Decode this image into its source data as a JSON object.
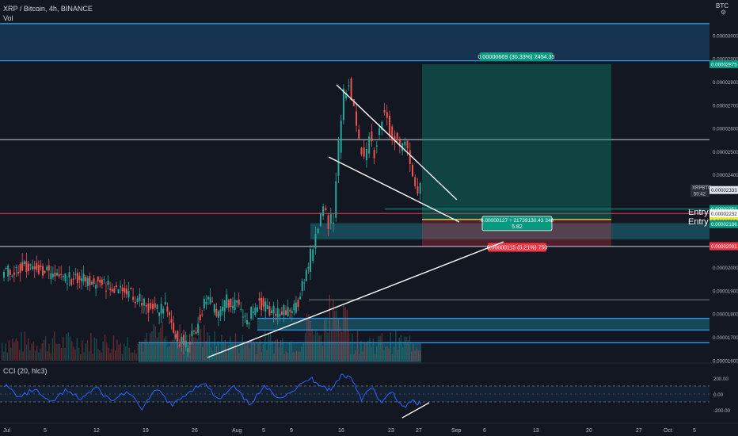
{
  "header": {
    "symbol_line": "XRP / Bitcoin, 4h, BINANCE",
    "volume_label": "Vol",
    "indicator_label": "CCI (20, hlc3)",
    "currency": "BTC",
    "settings_icon": "gear-icon"
  },
  "chart_data": {
    "type": "candlestick",
    "symbol": "XRP / Bitcoin",
    "timeframe": "4h",
    "exchange": "BINANCE",
    "x_tick_labels": [
      "Jul",
      "5",
      "12",
      "19",
      "26",
      "Aug",
      "5",
      "9",
      "16",
      "23",
      "27",
      "Sep",
      "6",
      "13",
      "20",
      "27",
      "Oct",
      "5"
    ],
    "y_tick_labels": [
      "0.00003000",
      "0.00002900",
      "0.00002800",
      "0.00002700",
      "0.00002600",
      "0.00002500",
      "0.00002400",
      "0.00002000",
      "0.00001900",
      "0.00001800",
      "0.00001700",
      "0.00001600"
    ],
    "ylim": [
      1.56e-05,
      3.07e-05
    ],
    "price_path": [
      {
        "t": 0,
        "p": 1.985e-05
      },
      {
        "t": 4,
        "p": 2e-05
      },
      {
        "t": 8,
        "p": 1.985e-05
      },
      {
        "t": 12,
        "p": 1.955e-05
      },
      {
        "t": 16,
        "p": 1.945e-05
      },
      {
        "t": 20,
        "p": 1.925e-05
      },
      {
        "t": 24,
        "p": 1.9e-05
      },
      {
        "t": 27,
        "p": 1.862e-05
      },
      {
        "t": 30,
        "p": 1.81e-05
      },
      {
        "t": 32,
        "p": 1.835e-05
      },
      {
        "t": 34,
        "p": 1.705e-05
      },
      {
        "t": 36,
        "p": 1.665e-05
      },
      {
        "t": 38,
        "p": 1.74e-05
      },
      {
        "t": 40,
        "p": 1.88e-05
      },
      {
        "t": 42,
        "p": 1.8e-05
      },
      {
        "t": 44,
        "p": 1.855e-05
      },
      {
        "t": 46,
        "p": 1.835e-05
      },
      {
        "t": 48,
        "p": 1.77e-05
      },
      {
        "t": 50,
        "p": 1.855e-05
      },
      {
        "t": 52,
        "p": 1.815e-05
      },
      {
        "t": 54,
        "p": 1.805e-05
      },
      {
        "t": 56,
        "p": 1.81e-05
      },
      {
        "t": 58,
        "p": 1.85e-05
      },
      {
        "t": 60,
        "p": 2e-05
      },
      {
        "t": 61,
        "p": 2.1e-05
      },
      {
        "t": 62,
        "p": 2.18e-05
      },
      {
        "t": 63,
        "p": 2.25e-05
      },
      {
        "t": 64,
        "p": 2.19e-05
      },
      {
        "t": 65,
        "p": 2.21e-05
      },
      {
        "t": 66,
        "p": 2.52e-05
      },
      {
        "t": 67,
        "p": 2.75e-05
      },
      {
        "t": 68,
        "p": 2.81e-05
      },
      {
        "t": 69,
        "p": 2.69e-05
      },
      {
        "t": 70,
        "p": 2.54e-05
      },
      {
        "t": 71,
        "p": 2.46e-05
      },
      {
        "t": 72,
        "p": 2.56e-05
      },
      {
        "t": 73,
        "p": 2.5e-05
      },
      {
        "t": 74,
        "p": 2.61e-05
      },
      {
        "t": 75,
        "p": 2.69e-05
      },
      {
        "t": 76,
        "p": 2.58e-05
      },
      {
        "t": 77,
        "p": 2.56e-05
      },
      {
        "t": 78,
        "p": 2.51e-05
      },
      {
        "t": 79,
        "p": 2.53e-05
      },
      {
        "t": 80,
        "p": 2.44e-05
      },
      {
        "t": 81,
        "p": 2.36e-05
      },
      {
        "t": 82,
        "p": 2.333e-05
      }
    ],
    "horizontal_levels": [
      {
        "price": 3.05e-05,
        "color": "#2196f3"
      },
      {
        "price": 2.89e-05,
        "color": "#2196f3"
      },
      {
        "price": 2.55e-05,
        "color": "#d1d4dc"
      },
      {
        "price": 2.232e-05,
        "color": "#f23645"
      },
      {
        "price": 2.09e-05,
        "color": "#d1d4dc"
      },
      {
        "price": 1.86e-05,
        "color": "#787b86"
      },
      {
        "price": 1.78e-05,
        "color": "#2196f3"
      },
      {
        "price": 1.73e-05,
        "color": "#2196f3"
      },
      {
        "price": 1.675e-05,
        "color": "#2196f3"
      }
    ],
    "zones": [
      {
        "from": 2.89e-05,
        "to": 3.05e-05,
        "color": "#2196f3"
      },
      {
        "from": 2.12e-05,
        "to": 2.19e-05,
        "color": "#26c6da"
      },
      {
        "from": 1.59e-05,
        "to": 1.675e-05,
        "color": "#26c6da"
      },
      {
        "from": 1.73e-05,
        "to": 1.78e-05,
        "color": "#26c6da"
      }
    ],
    "position": {
      "entry": 2.206e-05,
      "target": 2.875e-05,
      "stop": 2.091e-05,
      "target_label": "0.00000669 (30.33%) 2454.35",
      "entry_label": "0.00000127 ÷ 21739130.43 348",
      "ratio_label": "5.82",
      "stop_label": "0.00000115 (5.21%) 750"
    },
    "price_labels": [
      {
        "text": "0.00002875",
        "price": 2.875e-05,
        "bg": "#089981"
      },
      {
        "text": "0.00002333",
        "price": 2.333e-05,
        "bg": "#e0e3eb"
      },
      {
        "text": "0.00002251",
        "price": 2.251e-05,
        "bg": "#089981"
      },
      {
        "text": "0.00002232",
        "price": 2.232e-05,
        "bg": "#ffffff"
      },
      {
        "text": "0.00002206",
        "price": 2.206e-05,
        "bg": "#f0e442"
      },
      {
        "text": "0.00002186",
        "price": 2.186e-05,
        "bg": "#089981"
      },
      {
        "text": "0.00002091",
        "price": 2.091e-05,
        "bg": "#f23645"
      }
    ],
    "symbol_tag": "XRPBTC",
    "countdown": "50:42",
    "entry_texts": [
      "Entry",
      "Entry"
    ],
    "cci": {
      "y_tick_labels": [
        "200.00",
        "0.00",
        "-200.00"
      ],
      "ylim": [
        -280,
        280
      ],
      "bands": [
        100,
        -100
      ],
      "path": [
        {
          "t": 0,
          "v": 120
        },
        {
          "t": 3,
          "v": -40
        },
        {
          "t": 6,
          "v": 60
        },
        {
          "t": 9,
          "v": -120
        },
        {
          "t": 12,
          "v": 40
        },
        {
          "t": 15,
          "v": -60
        },
        {
          "t": 18,
          "v": 80
        },
        {
          "t": 21,
          "v": -90
        },
        {
          "t": 24,
          "v": 30
        },
        {
          "t": 27,
          "v": -180
        },
        {
          "t": 30,
          "v": 60
        },
        {
          "t": 33,
          "v": -150
        },
        {
          "t": 36,
          "v": 20
        },
        {
          "t": 39,
          "v": 150
        },
        {
          "t": 42,
          "v": -80
        },
        {
          "t": 45,
          "v": 90
        },
        {
          "t": 48,
          "v": -130
        },
        {
          "t": 51,
          "v": 80
        },
        {
          "t": 54,
          "v": -40
        },
        {
          "t": 57,
          "v": 60
        },
        {
          "t": 60,
          "v": 200
        },
        {
          "t": 62,
          "v": 120
        },
        {
          "t": 64,
          "v": 40
        },
        {
          "t": 66,
          "v": 240
        },
        {
          "t": 68,
          "v": 210
        },
        {
          "t": 70,
          "v": -60
        },
        {
          "t": 72,
          "v": 80
        },
        {
          "t": 74,
          "v": -120
        },
        {
          "t": 76,
          "v": 40
        },
        {
          "t": 78,
          "v": -180
        },
        {
          "t": 80,
          "v": -90
        },
        {
          "t": 82,
          "v": -140
        }
      ]
    }
  }
}
